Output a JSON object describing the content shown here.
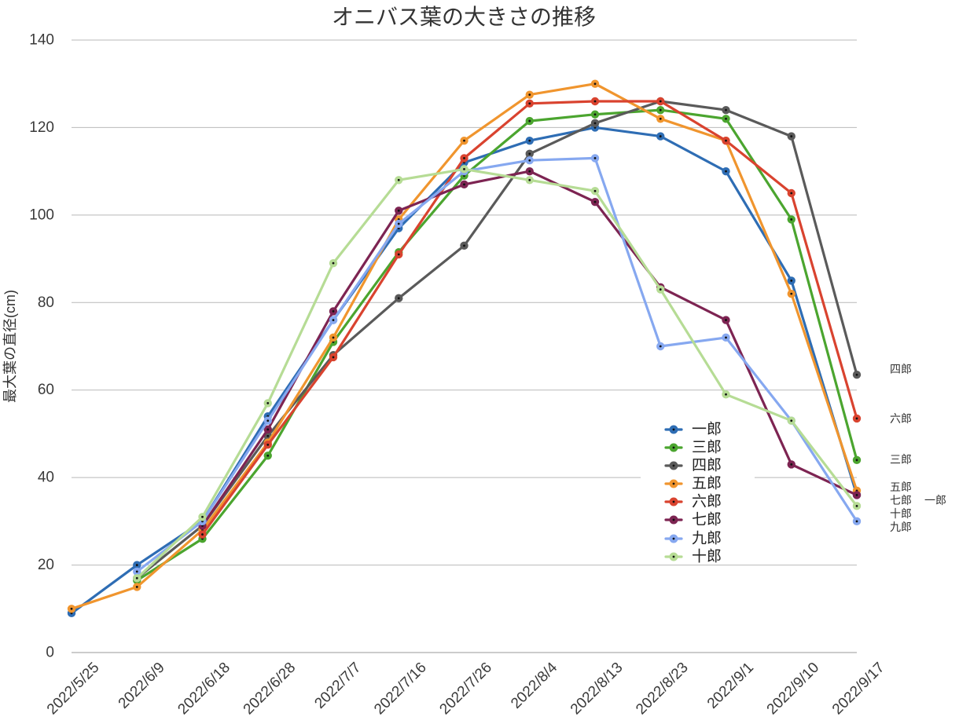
{
  "chart_data": {
    "type": "line",
    "title": "オニバス葉の大きさの推移",
    "ylabel": "最大葉の直径(cm)",
    "categories": [
      "2022/5/25",
      "2022/6/9",
      "2022/6/18",
      "2022/6/28",
      "2022/7/7",
      "2022/7/16",
      "2022/7/26",
      "2022/8/4",
      "2022/8/13",
      "2022/8/23",
      "2022/9/1",
      "2022/9/10",
      "2022/9/17"
    ],
    "ylim": [
      0,
      140
    ],
    "yticks": [
      0,
      20,
      40,
      60,
      80,
      100,
      120,
      140
    ],
    "grid": true,
    "legend": "bottom-right",
    "series": [
      {
        "name": "一郎",
        "color": "#2e6db4",
        "values": [
          9,
          20,
          30,
          54,
          76,
          97,
          112,
          117,
          120,
          118,
          110,
          85,
          36
        ]
      },
      {
        "name": "三郎",
        "color": "#4ba52f",
        "values": [
          null,
          16.5,
          26,
          45,
          71,
          91.5,
          109,
          121.5,
          123,
          124,
          122,
          99,
          44
        ]
      },
      {
        "name": "四郎",
        "color": "#5a5a5a",
        "values": [
          null,
          17,
          29,
          49.5,
          68,
          81,
          93,
          114,
          121,
          126,
          124,
          118,
          63.5
        ]
      },
      {
        "name": "五郎",
        "color": "#f0952e",
        "values": [
          10,
          15,
          28,
          48,
          72,
          99,
          117,
          127.5,
          130,
          122,
          117,
          82,
          37
        ]
      },
      {
        "name": "六郎",
        "color": "#d9432f",
        "values": [
          null,
          null,
          27,
          47.5,
          67.5,
          91,
          113,
          125.5,
          126,
          126,
          117,
          105,
          53.5
        ]
      },
      {
        "name": "七郎",
        "color": "#7d2452",
        "values": [
          null,
          null,
          29,
          51,
          78,
          101,
          107,
          110,
          103,
          83.5,
          76,
          43,
          36
        ]
      },
      {
        "name": "九郎",
        "color": "#86a8f0",
        "values": [
          null,
          18.5,
          30,
          53,
          76,
          98,
          110,
          112.5,
          113,
          70,
          72,
          53,
          30
        ]
      },
      {
        "name": "十郎",
        "color": "#b6dc95",
        "values": [
          null,
          17,
          31,
          57,
          89,
          108,
          110.5,
          108,
          105.5,
          83,
          59,
          53,
          33.5
        ]
      }
    ]
  }
}
